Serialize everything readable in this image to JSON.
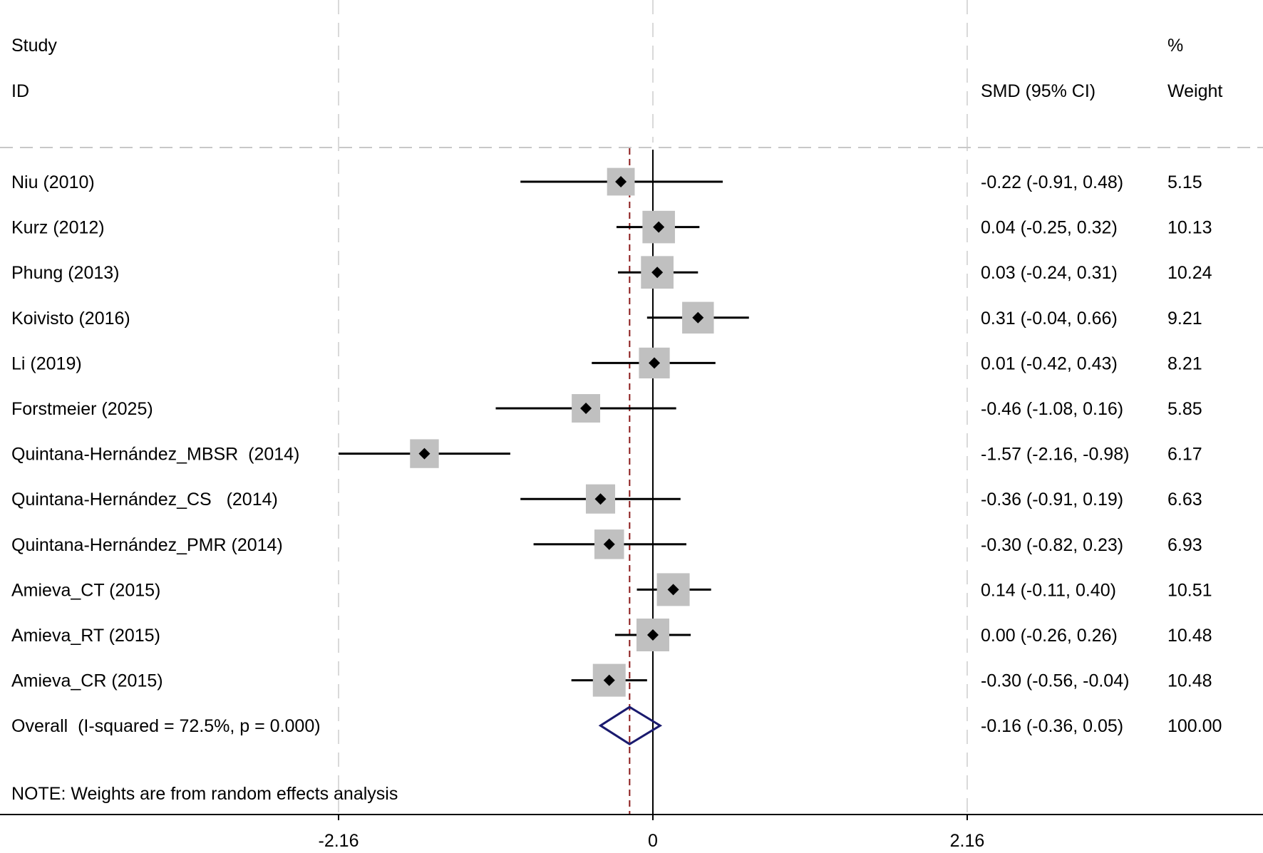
{
  "header": {
    "study": "Study",
    "id": "ID",
    "effect": "SMD (95% CI)",
    "weight_pct": "%",
    "weight": "Weight"
  },
  "note": "NOTE: Weights are from random effects analysis",
  "chart_data": {
    "type": "forest",
    "measure": "SMD",
    "xticks": [
      "-2.16",
      "0",
      "2.16"
    ],
    "xlim": [
      -2.16,
      2.16
    ],
    "studies": [
      {
        "label": "Niu (2010)",
        "est": -0.22,
        "lo": -0.91,
        "hi": 0.48,
        "ci_text": "-0.22 (-0.91, 0.48)",
        "weight": 5.15,
        "weight_text": "5.15"
      },
      {
        "label": "Kurz (2012)",
        "est": 0.04,
        "lo": -0.25,
        "hi": 0.32,
        "ci_text": "0.04 (-0.25, 0.32)",
        "weight": 10.13,
        "weight_text": "10.13"
      },
      {
        "label": "Phung (2013)",
        "est": 0.03,
        "lo": -0.24,
        "hi": 0.31,
        "ci_text": "0.03 (-0.24, 0.31)",
        "weight": 10.24,
        "weight_text": "10.24"
      },
      {
        "label": "Koivisto (2016)",
        "est": 0.31,
        "lo": -0.04,
        "hi": 0.66,
        "ci_text": "0.31 (-0.04, 0.66)",
        "weight": 9.21,
        "weight_text": "9.21"
      },
      {
        "label": "Li (2019)",
        "est": 0.01,
        "lo": -0.42,
        "hi": 0.43,
        "ci_text": "0.01 (-0.42, 0.43)",
        "weight": 8.21,
        "weight_text": "8.21"
      },
      {
        "label": "Forstmeier (2025)",
        "est": -0.46,
        "lo": -1.08,
        "hi": 0.16,
        "ci_text": "-0.46 (-1.08, 0.16)",
        "weight": 5.85,
        "weight_text": "5.85"
      },
      {
        "label": "Quintana-Hernández_MBSR  (2014)",
        "est": -1.57,
        "lo": -2.16,
        "hi": -0.98,
        "ci_text": "-1.57 (-2.16, -0.98)",
        "weight": 6.17,
        "weight_text": "6.17"
      },
      {
        "label": "Quintana-Hernández_CS   (2014)",
        "est": -0.36,
        "lo": -0.91,
        "hi": 0.19,
        "ci_text": "-0.36 (-0.91, 0.19)",
        "weight": 6.63,
        "weight_text": "6.63"
      },
      {
        "label": "Quintana-Hernández_PMR (2014)",
        "est": -0.3,
        "lo": -0.82,
        "hi": 0.23,
        "ci_text": "-0.30 (-0.82, 0.23)",
        "weight": 6.93,
        "weight_text": "6.93"
      },
      {
        "label": "Amieva_CT (2015)",
        "est": 0.14,
        "lo": -0.11,
        "hi": 0.4,
        "ci_text": "0.14 (-0.11, 0.40)",
        "weight": 10.51,
        "weight_text": "10.51"
      },
      {
        "label": "Amieva_RT (2015)",
        "est": 0.0,
        "lo": -0.26,
        "hi": 0.26,
        "ci_text": "0.00 (-0.26, 0.26)",
        "weight": 10.48,
        "weight_text": "10.48"
      },
      {
        "label": "Amieva_CR (2015)",
        "est": -0.3,
        "lo": -0.56,
        "hi": -0.04,
        "ci_text": "-0.30 (-0.56, -0.04)",
        "weight": 10.48,
        "weight_text": "10.48"
      }
    ],
    "overall": {
      "label": "Overall  (I-squared = 72.5%, p = 0.000)",
      "est": -0.16,
      "lo": -0.36,
      "hi": 0.05,
      "ci_text": "-0.16 (-0.36, 0.05)",
      "weight_text": "100.00"
    },
    "colors": {
      "weight_box": "#c0c0c0",
      "point": "#000000",
      "overall_diamond": "#1a1a6e",
      "overall_line": "#8b1a1a",
      "grid": "#d9d9d9"
    }
  }
}
